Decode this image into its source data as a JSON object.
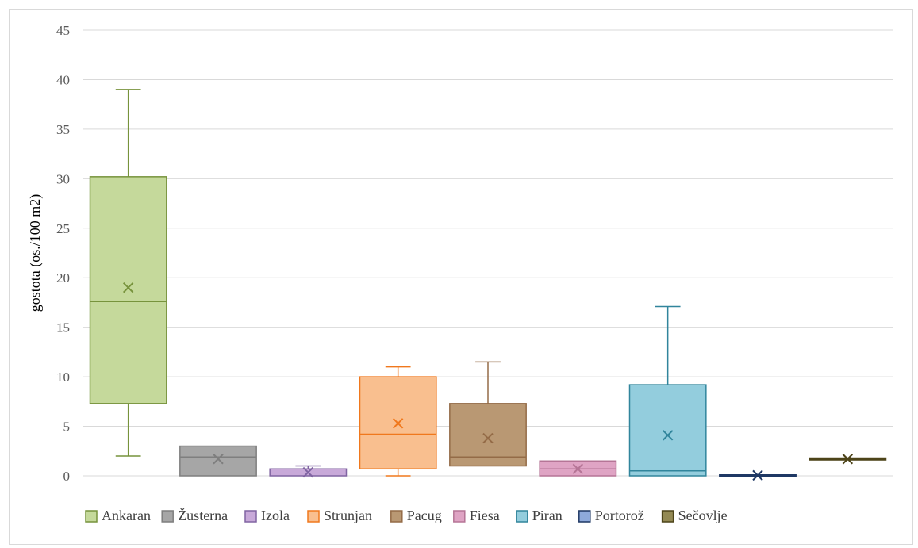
{
  "chart_data": {
    "type": "box",
    "title": "",
    "xlabel": "",
    "ylabel": "gostota (os./100 m2)",
    "ylim": [
      0,
      45
    ],
    "yticks": [
      0,
      5,
      10,
      15,
      20,
      25,
      30,
      35,
      40,
      45
    ],
    "grid": true,
    "legend_position": "bottom",
    "series": [
      {
        "name": "Ankaran",
        "min": 2.0,
        "q1": 7.3,
        "median": 17.6,
        "q3": 30.2,
        "max": 39.0,
        "mean": 19.0,
        "fill": "#c5d99b",
        "stroke": "#77933c"
      },
      {
        "name": "Žusterna",
        "min": 0.0,
        "q1": 0.0,
        "median": 1.9,
        "q3": 3.0,
        "max": 3.0,
        "mean": 1.7,
        "fill": "#a6a6a6",
        "stroke": "#7f7f7f"
      },
      {
        "name": "Izola",
        "min": 0.0,
        "q1": 0.0,
        "median": 0.7,
        "q3": 0.7,
        "max": 1.0,
        "mean": 0.35,
        "fill": "#c8a9d9",
        "stroke": "#8064a2"
      },
      {
        "name": "Strunjan",
        "min": 0.0,
        "q1": 0.7,
        "median": 4.2,
        "q3": 10.0,
        "max": 11.0,
        "mean": 5.3,
        "fill": "#f9bf8f",
        "stroke": "#f0781d"
      },
      {
        "name": "Pacug",
        "min": 1.0,
        "q1": 1.0,
        "median": 1.9,
        "q3": 7.3,
        "max": 11.5,
        "mean": 3.8,
        "fill": "#b99873",
        "stroke": "#946b47"
      },
      {
        "name": "Fiesa",
        "min": 0.0,
        "q1": 0.0,
        "median": 0.7,
        "q3": 1.5,
        "max": 1.5,
        "mean": 0.7,
        "fill": "#dfa4c4",
        "stroke": "#b57596"
      },
      {
        "name": "Piran",
        "min": 0.0,
        "q1": 0.0,
        "median": 0.5,
        "q3": 9.2,
        "max": 17.1,
        "mean": 4.1,
        "fill": "#93cddd",
        "stroke": "#31859c"
      },
      {
        "name": "Portorož",
        "min": 0.0,
        "q1": 0.0,
        "median": 0.0,
        "q3": 0.0,
        "max": 0.0,
        "mean": 0.05,
        "fill": "#8eaadb",
        "stroke": "#1f3864"
      },
      {
        "name": "Sečovlje",
        "min": 1.7,
        "q1": 1.7,
        "median": 1.7,
        "q3": 1.7,
        "max": 1.7,
        "mean": 1.7,
        "fill": "#938953",
        "stroke": "#4d4419"
      }
    ]
  }
}
